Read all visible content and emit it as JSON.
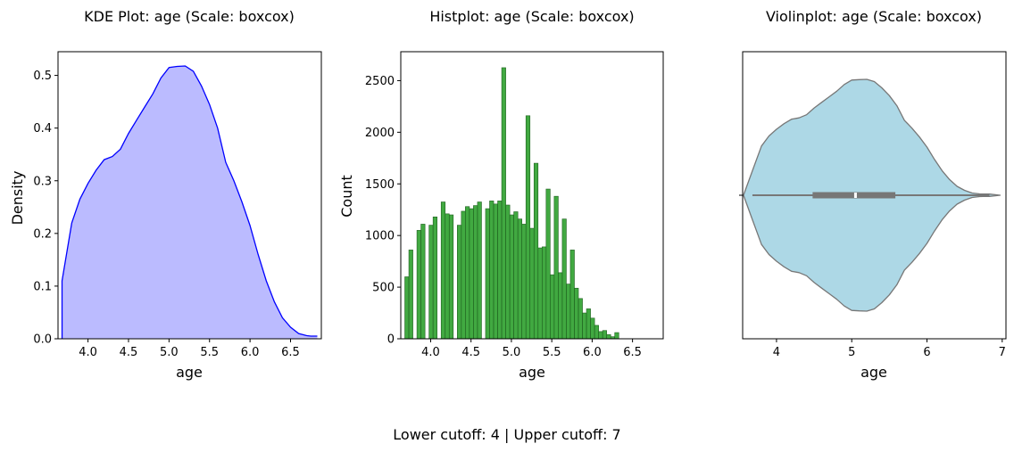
{
  "chart_data": [
    {
      "type": "area",
      "title": "KDE Plot: age (Scale: boxcox)",
      "xlabel": "age",
      "ylabel": "Density",
      "xlim": [
        3.63,
        6.88
      ],
      "ylim": [
        0.0,
        0.545
      ],
      "xticks": [
        "4.0",
        "4.5",
        "5.0",
        "5.5",
        "6.0",
        "6.5"
      ],
      "yticks": [
        "0.0",
        "0.1",
        "0.2",
        "0.3",
        "0.4",
        "0.5"
      ],
      "fill_color": "#bbbbff",
      "line_color": "#0000ff",
      "x": [
        3.68,
        3.8,
        3.9,
        4.0,
        4.1,
        4.2,
        4.3,
        4.4,
        4.5,
        4.6,
        4.7,
        4.8,
        4.9,
        5.0,
        5.1,
        5.2,
        5.3,
        5.4,
        5.5,
        5.6,
        5.7,
        5.8,
        5.9,
        6.0,
        6.1,
        6.2,
        6.3,
        6.4,
        6.5,
        6.6,
        6.7,
        6.75,
        6.83
      ],
      "y": [
        0.11,
        0.22,
        0.265,
        0.295,
        0.32,
        0.34,
        0.346,
        0.36,
        0.39,
        0.415,
        0.44,
        0.465,
        0.495,
        0.515,
        0.517,
        0.518,
        0.508,
        0.48,
        0.445,
        0.4,
        0.335,
        0.3,
        0.26,
        0.215,
        0.16,
        0.11,
        0.07,
        0.04,
        0.022,
        0.01,
        0.006,
        0.005,
        0.005
      ]
    },
    {
      "type": "bar",
      "title": "Histplot: age (Scale: boxcox)",
      "xlabel": "age",
      "ylabel": "Count",
      "xlim": [
        3.63,
        6.88
      ],
      "ylim": [
        0,
        2780
      ],
      "xticks": [
        "4.0",
        "4.5",
        "5.0",
        "5.5",
        "6.0",
        "6.5"
      ],
      "yticks": [
        "0",
        "500",
        "1000",
        "1500",
        "2000",
        "2500"
      ],
      "bar_color": "#2ca02c",
      "bin_start": 3.68,
      "bin_width": 0.05,
      "values": [
        600,
        860,
        0,
        1050,
        1110,
        0,
        1100,
        1180,
        0,
        1325,
        1210,
        1200,
        0,
        1100,
        1235,
        1280,
        1260,
        1290,
        1325,
        0,
        1260,
        1335,
        1305,
        1335,
        2625,
        1295,
        1200,
        1230,
        1160,
        1110,
        2160,
        1070,
        1700,
        880,
        890,
        1450,
        620,
        1380,
        640,
        1160,
        530,
        860,
        490,
        390,
        250,
        290,
        200,
        130,
        70,
        80,
        40,
        20,
        60
      ]
    },
    {
      "type": "violin",
      "title": "Violinplot: age (Scale: boxcox)",
      "xlabel": "age",
      "ylabel": "",
      "xlim": [
        3.55,
        7.05
      ],
      "xticks": [
        "4",
        "5",
        "6",
        "7"
      ],
      "fill_color": "#add8e6",
      "x": [
        3.68,
        3.8,
        3.9,
        4.0,
        4.1,
        4.2,
        4.3,
        4.4,
        4.5,
        4.6,
        4.7,
        4.8,
        4.9,
        5.0,
        5.1,
        5.2,
        5.3,
        5.4,
        5.5,
        5.6,
        5.7,
        5.8,
        5.9,
        6.0,
        6.1,
        6.2,
        6.3,
        6.4,
        6.5,
        6.6,
        6.7,
        6.75,
        6.83
      ],
      "density": [
        0.11,
        0.22,
        0.265,
        0.295,
        0.32,
        0.34,
        0.346,
        0.36,
        0.39,
        0.415,
        0.44,
        0.465,
        0.495,
        0.515,
        0.517,
        0.518,
        0.508,
        0.48,
        0.445,
        0.4,
        0.335,
        0.3,
        0.26,
        0.215,
        0.16,
        0.11,
        0.07,
        0.04,
        0.022,
        0.01,
        0.006,
        0.005,
        0.005
      ],
      "whisker": [
        3.68,
        6.83
      ],
      "quartiles": [
        4.48,
        5.58
      ],
      "median": 5.05
    }
  ],
  "footer": "Lower cutoff: 4 | Upper cutoff: 7"
}
